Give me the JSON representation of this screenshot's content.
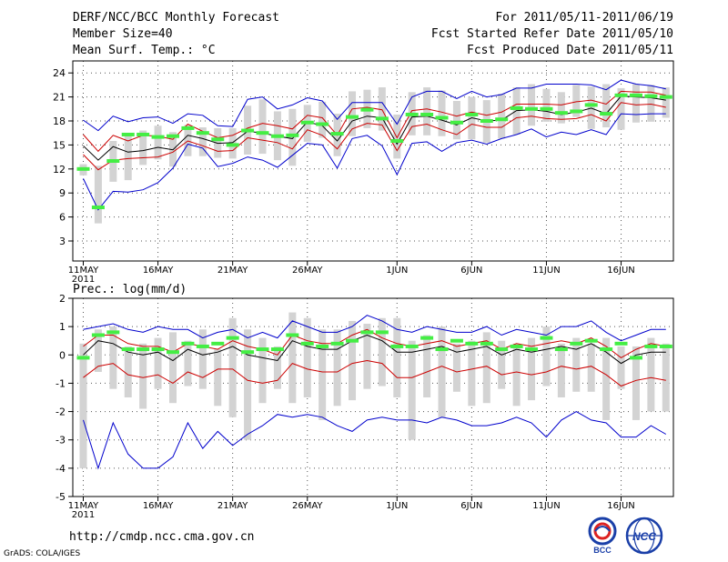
{
  "header": {
    "title": "DERF/NCC/BCC Monthly Forecast",
    "member": "Member Size=40",
    "variable": "Mean Surf. Temp.: °C",
    "period": "For 2011/05/11-2011/06/19",
    "refer": "Fcst Started Refer Date 2011/05/10",
    "produced": "Fcst Produced Date 2011/05/11"
  },
  "footer": {
    "url": "http://cmdp.ncc.cma.gov.cn",
    "credit": "GrADS: COLA/IGES",
    "logo1_text": "BCC",
    "logo2_text": "NCC"
  },
  "colors": {
    "box": "#d3d3d3",
    "obs": "#44ee44",
    "outer": "#0000cc",
    "inner": "#cc0000",
    "mean": "#000000",
    "grid": "#555555"
  },
  "chart_data": [
    {
      "type": "box-line",
      "title": "Mean Surf. Temp.: °C",
      "ylim": [
        0.5,
        25.5
      ],
      "yticks": [
        3,
        6,
        9,
        12,
        15,
        18,
        21,
        24
      ],
      "xlim": [
        0.3,
        40.5
      ],
      "xticks": [
        {
          "x": 1,
          "label": "11MAY",
          "sub": "2011"
        },
        {
          "x": 6,
          "label": "16MAY"
        },
        {
          "x": 11,
          "label": "21MAY"
        },
        {
          "x": 16,
          "label": "26MAY"
        },
        {
          "x": 22,
          "label": "1JUN"
        },
        {
          "x": 27,
          "label": "6JUN"
        },
        {
          "x": 32,
          "label": "11JUN"
        },
        {
          "x": 37,
          "label": "16JUN"
        }
      ],
      "boxes": [
        [
          11.2,
          12.6
        ],
        [
          5.2,
          12.4
        ],
        [
          10.4,
          15.5
        ],
        [
          10.6,
          16.5
        ],
        [
          12.5,
          16.8
        ],
        [
          13.2,
          17.4
        ],
        [
          12.3,
          16.6
        ],
        [
          13.6,
          17.5
        ],
        [
          13.6,
          17.2
        ],
        [
          13.4,
          17.1
        ],
        [
          13.3,
          17.1
        ],
        [
          13.8,
          19.9
        ],
        [
          13.9,
          20.7
        ],
        [
          13.1,
          19.2
        ],
        [
          12.4,
          19.5
        ],
        [
          15.4,
          20.0
        ],
        [
          15.9,
          20.4
        ],
        [
          13.6,
          18.9
        ],
        [
          16.1,
          21.7
        ],
        [
          17.1,
          21.9
        ],
        [
          16.8,
          22.2
        ],
        [
          13.3,
          18.8
        ],
        [
          16.2,
          21.6
        ],
        [
          16.2,
          22.2
        ],
        [
          16.1,
          21.8
        ],
        [
          15.7,
          20.5
        ],
        [
          15.7,
          21.0
        ],
        [
          15.3,
          20.6
        ],
        [
          15.8,
          21.4
        ],
        [
          16.3,
          22.2
        ],
        [
          17.4,
          22.6
        ],
        [
          17.9,
          22.0
        ],
        [
          17.7,
          21.6
        ],
        [
          18.5,
          22.5
        ],
        [
          17.0,
          22.3
        ],
        [
          17.2,
          22.6
        ],
        [
          16.9,
          22.1
        ],
        [
          17.8,
          22.6
        ],
        [
          17.9,
          22.5
        ],
        [
          18.4,
          22.2
        ]
      ],
      "outer_upper": [
        18.1,
        16.8,
        18.6,
        17.9,
        18.4,
        18.5,
        17.7,
        18.9,
        18.7,
        17.4,
        17.3,
        20.7,
        21.0,
        19.5,
        20.0,
        20.9,
        20.5,
        18.2,
        20.3,
        20.3,
        20.3,
        17.6,
        21.0,
        21.7,
        21.7,
        20.8,
        21.7,
        21.0,
        21.3,
        22.1,
        22.1,
        22.6,
        22.6,
        22.6,
        22.5,
        21.9,
        23.1,
        22.6,
        22.4,
        22.0
      ],
      "inner_upper": [
        16.3,
        14.2,
        16.2,
        15.5,
        16.2,
        16.1,
        15.7,
        17.6,
        16.7,
        15.9,
        16.2,
        17.1,
        17.7,
        17.4,
        17.0,
        18.7,
        18.4,
        16.2,
        19.5,
        19.7,
        19.4,
        15.9,
        19.3,
        19.5,
        19.1,
        18.6,
        19.1,
        18.7,
        19.1,
        20.1,
        20.1,
        20.1,
        20.0,
        20.4,
        20.6,
        20.1,
        21.7,
        21.6,
        21.6,
        21.2
      ],
      "mean": [
        14.9,
        13.1,
        14.8,
        14.1,
        14.3,
        14.7,
        14.4,
        16.2,
        15.8,
        15.2,
        15.3,
        16.7,
        16.5,
        16.1,
        15.8,
        17.9,
        17.4,
        15.5,
        18.0,
        18.6,
        18.4,
        15.1,
        18.5,
        18.6,
        18.1,
        17.5,
        18.4,
        18.0,
        18.1,
        19.3,
        19.4,
        19.2,
        18.8,
        19.1,
        19.6,
        18.9,
        21.1,
        21.0,
        20.9,
        20.6
      ],
      "inner_lower": [
        13.8,
        11.9,
        13.1,
        13.3,
        13.4,
        13.5,
        14.1,
        15.5,
        14.9,
        14.2,
        14.3,
        15.9,
        15.6,
        15.3,
        14.5,
        16.9,
        16.2,
        14.5,
        17.0,
        17.7,
        17.5,
        14.3,
        17.3,
        17.6,
        16.9,
        16.3,
        17.6,
        17.2,
        17.2,
        18.4,
        18.6,
        18.3,
        18.2,
        18.3,
        18.8,
        18.0,
        20.3,
        20.0,
        20.1,
        19.7
      ],
      "outer_lower": [
        10.8,
        6.9,
        9.2,
        9.1,
        9.4,
        10.3,
        12.1,
        15.1,
        14.6,
        12.3,
        12.7,
        13.5,
        13.1,
        12.2,
        13.7,
        15.2,
        15.0,
        12.1,
        15.8,
        16.2,
        14.9,
        11.3,
        15.2,
        15.4,
        14.2,
        15.3,
        15.6,
        15.1,
        15.8,
        16.3,
        17.0,
        16.0,
        16.6,
        16.3,
        16.9,
        16.3,
        18.9,
        18.8,
        18.9,
        18.9
      ],
      "obs": [
        12.0,
        7.2,
        13.0,
        16.3,
        16.3,
        16.0,
        16.1,
        17.1,
        16.5,
        15.7,
        15.0,
        16.8,
        16.5,
        16.1,
        16.2,
        17.8,
        17.6,
        16.4,
        18.5,
        19.4,
        18.3,
        15.5,
        18.8,
        18.8,
        18.4,
        17.8,
        18.8,
        18.0,
        18.2,
        19.6,
        19.5,
        19.5,
        19.0,
        19.2,
        20.0,
        18.9,
        21.2,
        21.2,
        21.1,
        21.0
      ]
    },
    {
      "type": "box-line",
      "title": "Prec.: log(mm/d)",
      "ylim": [
        -5,
        2
      ],
      "yticks": [
        -5,
        -4,
        -3,
        -2,
        -1,
        0,
        1,
        2
      ],
      "xlim": [
        0.3,
        40.5
      ],
      "xticks": [
        {
          "x": 1,
          "label": "11MAY",
          "sub": "2011"
        },
        {
          "x": 6,
          "label": "16MAY"
        },
        {
          "x": 11,
          "label": "21MAY"
        },
        {
          "x": 16,
          "label": "26MAY"
        },
        {
          "x": 22,
          "label": "1JUN"
        },
        {
          "x": 27,
          "label": "6JUN"
        },
        {
          "x": 32,
          "label": "11JUN"
        },
        {
          "x": 37,
          "label": "16JUN"
        }
      ],
      "boxes": [
        [
          -4.0,
          0.4
        ],
        [
          -0.6,
          0.9
        ],
        [
          -1.2,
          1.0
        ],
        [
          -1.5,
          0.3
        ],
        [
          -1.9,
          0.4
        ],
        [
          -1.2,
          0.6
        ],
        [
          -1.7,
          0.8
        ],
        [
          -1.1,
          0.5
        ],
        [
          -1.2,
          0.9
        ],
        [
          -1.8,
          0.2
        ],
        [
          -2.2,
          1.3
        ],
        [
          -3.0,
          0.9
        ],
        [
          -1.7,
          0.6
        ],
        [
          -1.2,
          0.3
        ],
        [
          -1.7,
          1.5
        ],
        [
          -1.5,
          1.3
        ],
        [
          -2.3,
          0.9
        ],
        [
          -1.8,
          0.9
        ],
        [
          -1.6,
          1.2
        ],
        [
          -1.2,
          1.1
        ],
        [
          -1.1,
          1.3
        ],
        [
          -1.5,
          1.3
        ],
        [
          -3.0,
          0.5
        ],
        [
          -1.5,
          0.7
        ],
        [
          -2.2,
          1.0
        ],
        [
          -1.3,
          0.4
        ],
        [
          -1.8,
          0.5
        ],
        [
          -1.7,
          0.8
        ],
        [
          -1.2,
          0.5
        ],
        [
          -1.8,
          0.4
        ],
        [
          -1.6,
          0.6
        ],
        [
          -1.1,
          1.0
        ],
        [
          -1.5,
          0.4
        ],
        [
          -1.3,
          0.6
        ],
        [
          -1.3,
          0.4
        ],
        [
          -2.3,
          0.6
        ],
        [
          -1.2,
          0.3
        ],
        [
          -2.3,
          0.3
        ],
        [
          -2.0,
          0.6
        ],
        [
          -2.0,
          0.4
        ]
      ],
      "outer_upper": [
        0.9,
        1.0,
        1.1,
        0.9,
        0.8,
        1.0,
        0.9,
        0.9,
        0.6,
        0.8,
        0.9,
        0.6,
        0.8,
        0.6,
        1.2,
        1.0,
        0.8,
        0.8,
        1.0,
        1.4,
        1.2,
        0.9,
        0.8,
        1.0,
        0.9,
        0.8,
        0.8,
        1.0,
        0.7,
        0.9,
        0.8,
        0.7,
        1.0,
        1.0,
        1.2,
        0.8,
        0.5,
        0.7,
        0.9,
        0.9
      ],
      "inner_upper": [
        0.3,
        0.7,
        0.7,
        0.4,
        0.3,
        0.3,
        0.1,
        0.4,
        0.3,
        0.2,
        0.5,
        0.3,
        0.2,
        0.0,
        0.7,
        0.5,
        0.4,
        0.4,
        0.7,
        0.9,
        0.6,
        0.4,
        0.3,
        0.4,
        0.5,
        0.3,
        0.4,
        0.5,
        0.2,
        0.4,
        0.3,
        0.4,
        0.5,
        0.4,
        0.6,
        0.3,
        -0.1,
        0.2,
        0.4,
        0.3
      ],
      "mean": [
        0.0,
        0.5,
        0.4,
        0.1,
        0.0,
        0.1,
        -0.2,
        0.2,
        0.0,
        0.1,
        0.3,
        0.0,
        -0.1,
        -0.2,
        0.5,
        0.3,
        0.2,
        0.2,
        0.5,
        0.7,
        0.5,
        0.1,
        0.1,
        0.2,
        0.3,
        0.1,
        0.2,
        0.3,
        0.0,
        0.2,
        0.1,
        0.2,
        0.3,
        0.2,
        0.4,
        0.1,
        -0.3,
        0.0,
        0.1,
        0.1
      ],
      "inner_lower": [
        -0.8,
        -0.4,
        -0.3,
        -0.7,
        -0.8,
        -0.7,
        -1.0,
        -0.6,
        -0.8,
        -0.5,
        -0.5,
        -0.9,
        -1.0,
        -0.9,
        -0.3,
        -0.5,
        -0.6,
        -0.6,
        -0.3,
        -0.2,
        -0.3,
        -0.8,
        -0.8,
        -0.6,
        -0.4,
        -0.6,
        -0.5,
        -0.4,
        -0.7,
        -0.6,
        -0.7,
        -0.6,
        -0.4,
        -0.5,
        -0.4,
        -0.7,
        -1.1,
        -0.9,
        -0.8,
        -0.9
      ],
      "outer_lower": [
        -2.3,
        -4.0,
        -2.4,
        -3.5,
        -4.0,
        -4.0,
        -3.6,
        -2.4,
        -3.3,
        -2.7,
        -3.2,
        -2.8,
        -2.5,
        -2.1,
        -2.2,
        -2.1,
        -2.2,
        -2.5,
        -2.7,
        -2.3,
        -2.2,
        -2.3,
        -2.3,
        -2.4,
        -2.2,
        -2.3,
        -2.5,
        -2.5,
        -2.4,
        -2.2,
        -2.4,
        -2.9,
        -2.3,
        -2.0,
        -2.3,
        -2.4,
        -2.9,
        -2.9,
        -2.5,
        -2.8
      ],
      "obs": [
        -0.1,
        0.7,
        0.8,
        0.2,
        0.2,
        0.2,
        0.1,
        0.4,
        0.3,
        0.4,
        0.6,
        0.1,
        0.2,
        0.2,
        0.7,
        0.4,
        0.3,
        0.4,
        0.5,
        0.8,
        0.8,
        0.3,
        0.3,
        0.6,
        0.2,
        0.5,
        0.4,
        0.4,
        0.2,
        0.3,
        0.2,
        0.6,
        0.2,
        0.4,
        0.5,
        0.2,
        0.4,
        -0.1,
        0.3,
        0.3
      ]
    }
  ]
}
